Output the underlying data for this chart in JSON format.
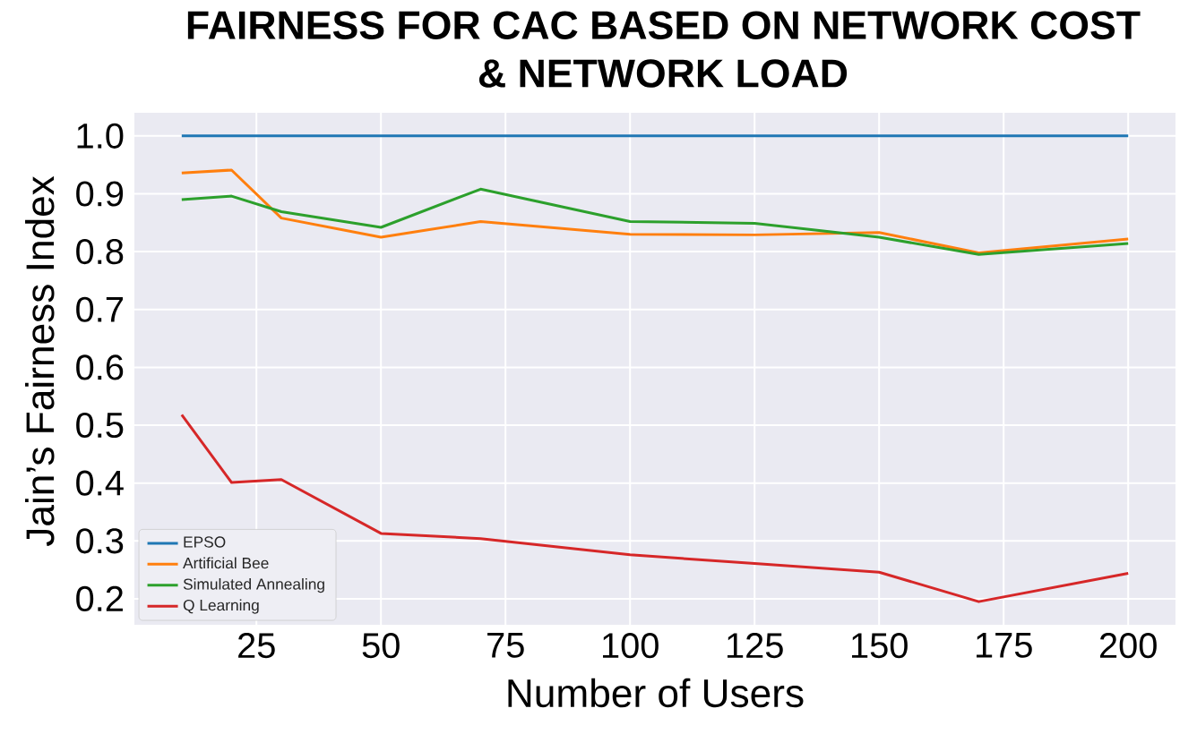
{
  "chart_data": {
    "type": "line",
    "title": "FAIRNESS FOR CAC BASED ON NETWORK COST & NETWORK LOAD",
    "xlabel": "Number of Users",
    "ylabel": "Jain’s Fairness Index",
    "x": [
      10,
      20,
      30,
      50,
      70,
      100,
      125,
      150,
      170,
      200
    ],
    "series": [
      {
        "name": "EPSO",
        "color": "#1f77b4",
        "values": [
          1,
          1,
          1,
          1,
          1,
          1,
          1,
          1,
          1,
          1
        ]
      },
      {
        "name": "Artificial Bee",
        "color": "#ff7f0e",
        "values": [
          0.936,
          0.941,
          0.858,
          0.825,
          0.852,
          0.83,
          0.829,
          0.833,
          0.798,
          0.822
        ]
      },
      {
        "name": "Simulated Annealing",
        "color": "#2ca02c",
        "values": [
          0.89,
          0.896,
          0.869,
          0.842,
          0.908,
          0.852,
          0.849,
          0.825,
          0.795,
          0.814
        ]
      },
      {
        "name": "Q Learning",
        "color": "#d62728",
        "values": [
          0.518,
          0.401,
          0.406,
          0.313,
          0.304,
          0.276,
          0.261,
          0.246,
          0.195,
          0.244
        ]
      }
    ],
    "xlim": [
      0.5,
      209.5
    ],
    "ylim": [
      0.155,
      1.04
    ],
    "xticks": [
      25,
      50,
      75,
      100,
      125,
      150,
      175,
      200
    ],
    "yticks": [
      0.2,
      0.3,
      0.4,
      0.5,
      0.6,
      0.7,
      0.8,
      0.9,
      {
        "value": 1,
        "label": "1.0"
      }
    ],
    "grid": true,
    "legend": "bottom left"
  }
}
